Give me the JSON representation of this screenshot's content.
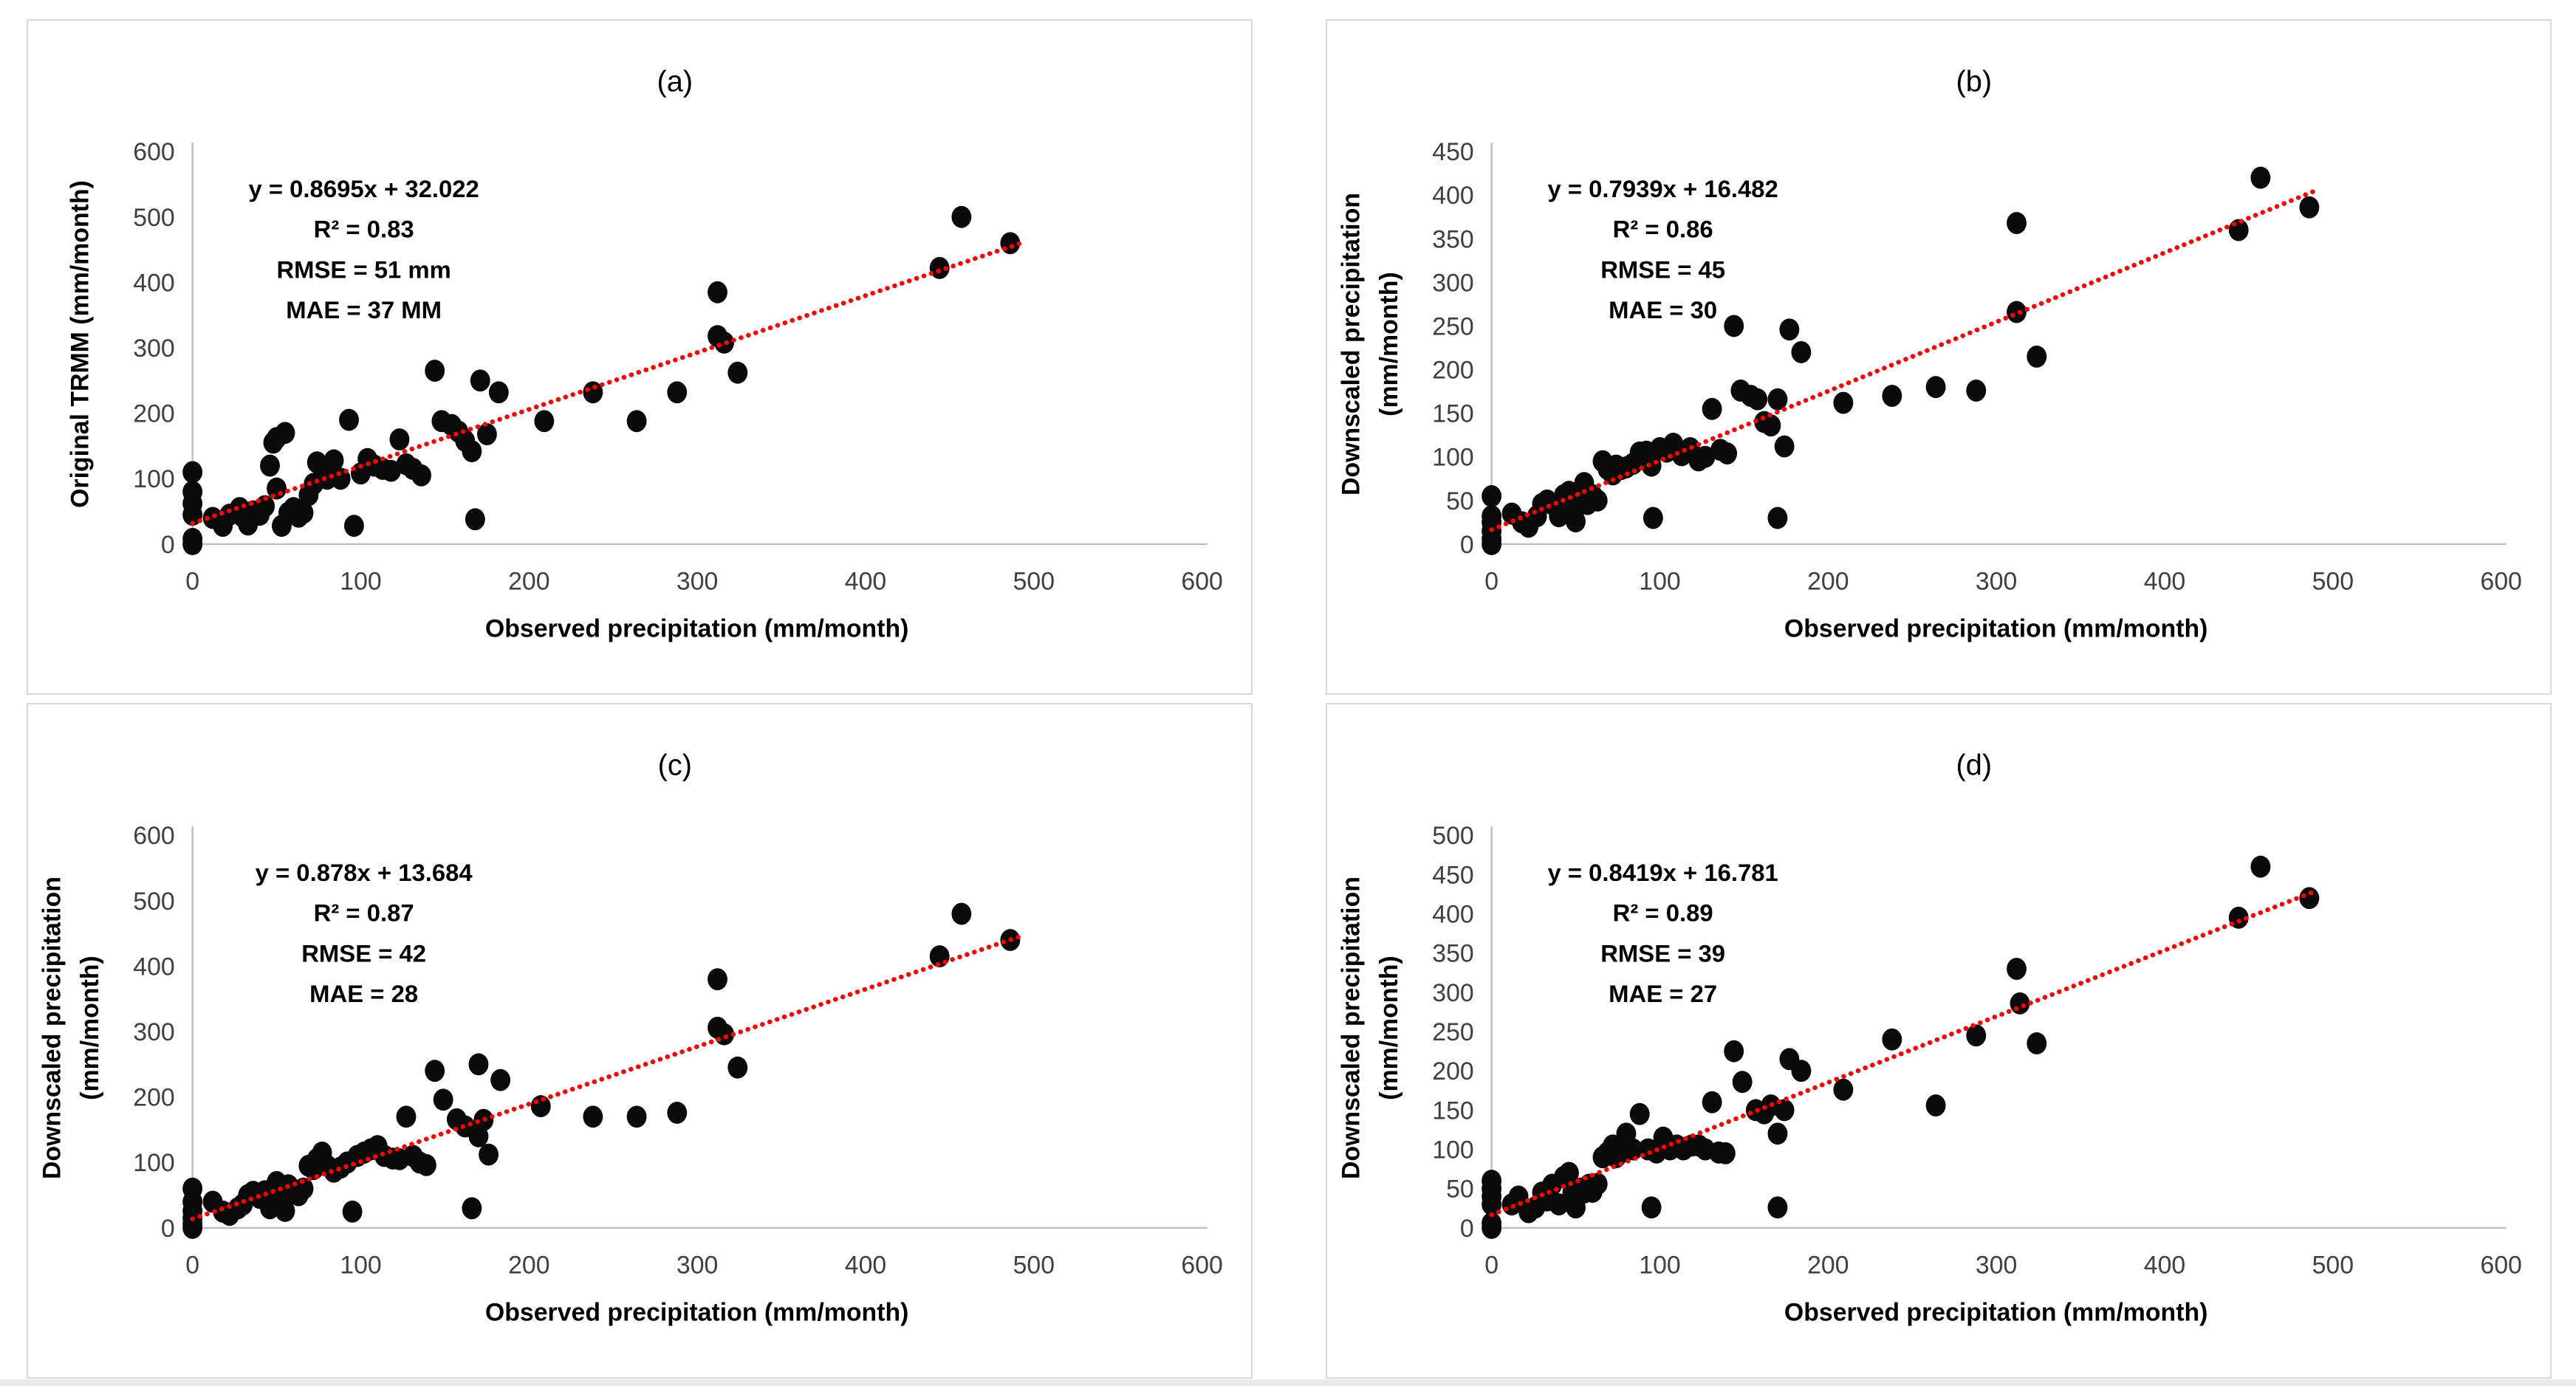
{
  "figure": {
    "background": "#ffffff",
    "panel_border_color": "#d9d9d9",
    "axis_line_color": "#bfbfbf",
    "tick_label_color": "#404040",
    "text_color": "#000000",
    "point_color": "#0a0a0a",
    "trendline_color": "#ff0000"
  },
  "chart_data": [
    {
      "type": "scatter",
      "panel_label": "(a)",
      "xlabel": "Observed precipitation (mm/month)",
      "ylabel_lines": [
        "Original TRMM (mm/month)"
      ],
      "xlim": [
        0,
        600
      ],
      "ylim": [
        0,
        600
      ],
      "xticks": [
        0,
        100,
        200,
        300,
        400,
        500,
        600
      ],
      "yticks": [
        0,
        100,
        200,
        300,
        400,
        500,
        600
      ],
      "grid": false,
      "legend": null,
      "annotation_lines": [
        "y = 0.8695x + 32.022",
        "R² = 0.83",
        "RMSE = 51 mm",
        "MAE = 37 MM"
      ],
      "trendline": {
        "slope": 0.8695,
        "intercept": 32.022,
        "x_start": 0,
        "x_end": 492,
        "style": "dotted"
      },
      "points": [
        [
          0,
          0
        ],
        [
          0,
          8
        ],
        [
          0,
          45
        ],
        [
          0,
          62
        ],
        [
          0,
          80
        ],
        [
          0,
          110
        ],
        [
          12,
          40
        ],
        [
          18,
          28
        ],
        [
          22,
          45
        ],
        [
          28,
          55
        ],
        [
          30,
          42
        ],
        [
          33,
          30
        ],
        [
          36,
          50
        ],
        [
          40,
          45
        ],
        [
          43,
          58
        ],
        [
          46,
          120
        ],
        [
          48,
          155
        ],
        [
          50,
          162
        ],
        [
          50,
          85
        ],
        [
          53,
          28
        ],
        [
          55,
          170
        ],
        [
          57,
          48
        ],
        [
          60,
          55
        ],
        [
          63,
          42
        ],
        [
          66,
          48
        ],
        [
          69,
          75
        ],
        [
          72,
          92
        ],
        [
          74,
          125
        ],
        [
          77,
          118
        ],
        [
          80,
          100
        ],
        [
          84,
          128
        ],
        [
          88,
          100
        ],
        [
          93,
          190
        ],
        [
          96,
          28
        ],
        [
          100,
          108
        ],
        [
          104,
          130
        ],
        [
          108,
          120
        ],
        [
          113,
          115
        ],
        [
          118,
          112
        ],
        [
          123,
          160
        ],
        [
          127,
          122
        ],
        [
          131,
          115
        ],
        [
          136,
          105
        ],
        [
          144,
          265
        ],
        [
          148,
          188
        ],
        [
          154,
          182
        ],
        [
          158,
          172
        ],
        [
          162,
          158
        ],
        [
          166,
          142
        ],
        [
          168,
          38
        ],
        [
          171,
          250
        ],
        [
          175,
          168
        ],
        [
          182,
          232
        ],
        [
          209,
          188
        ],
        [
          238,
          232
        ],
        [
          264,
          188
        ],
        [
          288,
          232
        ],
        [
          312,
          385
        ],
        [
          312,
          318
        ],
        [
          316,
          308
        ],
        [
          324,
          262
        ],
        [
          444,
          422
        ],
        [
          457,
          500
        ],
        [
          486,
          460
        ]
      ]
    },
    {
      "type": "scatter",
      "panel_label": "(b)",
      "xlabel": "Observed precipitation (mm/month)",
      "ylabel_lines": [
        "Downscaled precipitation",
        "(mm/month)"
      ],
      "xlim": [
        0,
        600
      ],
      "ylim": [
        0,
        450
      ],
      "xticks": [
        0,
        100,
        200,
        300,
        400,
        500,
        600
      ],
      "yticks": [
        0,
        50,
        100,
        150,
        200,
        250,
        300,
        350,
        400,
        450
      ],
      "grid": false,
      "legend": null,
      "annotation_lines": [
        "y = 0.7939x + 16.482",
        "R² = 0.86",
        "RMSE = 45",
        "MAE = 30"
      ],
      "trendline": {
        "slope": 0.7939,
        "intercept": 16.482,
        "x_start": 0,
        "x_end": 490,
        "style": "dotted"
      },
      "points": [
        [
          0,
          0
        ],
        [
          0,
          6
        ],
        [
          0,
          15
        ],
        [
          0,
          25
        ],
        [
          0,
          32
        ],
        [
          0,
          55
        ],
        [
          12,
          35
        ],
        [
          18,
          25
        ],
        [
          22,
          20
        ],
        [
          27,
          32
        ],
        [
          30,
          46
        ],
        [
          33,
          50
        ],
        [
          36,
          46
        ],
        [
          40,
          32
        ],
        [
          43,
          56
        ],
        [
          46,
          60
        ],
        [
          48,
          42
        ],
        [
          50,
          26
        ],
        [
          53,
          46
        ],
        [
          55,
          70
        ],
        [
          57,
          46
        ],
        [
          60,
          56
        ],
        [
          63,
          50
        ],
        [
          66,
          95
        ],
        [
          69,
          86
        ],
        [
          72,
          80
        ],
        [
          74,
          90
        ],
        [
          77,
          86
        ],
        [
          80,
          88
        ],
        [
          84,
          92
        ],
        [
          88,
          105
        ],
        [
          92,
          106
        ],
        [
          95,
          90
        ],
        [
          96,
          30
        ],
        [
          100,
          110
        ],
        [
          104,
          106
        ],
        [
          108,
          115
        ],
        [
          113,
          102
        ],
        [
          118,
          110
        ],
        [
          123,
          96
        ],
        [
          127,
          100
        ],
        [
          131,
          155
        ],
        [
          136,
          108
        ],
        [
          140,
          104
        ],
        [
          144,
          250
        ],
        [
          148,
          176
        ],
        [
          154,
          170
        ],
        [
          158,
          166
        ],
        [
          162,
          140
        ],
        [
          166,
          136
        ],
        [
          170,
          166
        ],
        [
          170,
          30
        ],
        [
          174,
          112
        ],
        [
          177,
          246
        ],
        [
          184,
          220
        ],
        [
          209,
          162
        ],
        [
          238,
          170
        ],
        [
          264,
          180
        ],
        [
          288,
          176
        ],
        [
          312,
          266
        ],
        [
          312,
          368
        ],
        [
          324,
          215
        ],
        [
          444,
          360
        ],
        [
          457,
          420
        ],
        [
          486,
          386
        ]
      ]
    },
    {
      "type": "scatter",
      "panel_label": "(c)",
      "xlabel": "Observed precipitation (mm/month)",
      "ylabel_lines": [
        "Downscaled precipitation",
        "(mm/month)"
      ],
      "xlim": [
        0,
        600
      ],
      "ylim": [
        0,
        600
      ],
      "xticks": [
        0,
        100,
        200,
        300,
        400,
        500,
        600
      ],
      "yticks": [
        0,
        100,
        200,
        300,
        400,
        500,
        600
      ],
      "grid": false,
      "legend": null,
      "annotation_lines": [
        "y = 0.878x + 13.684",
        "R² = 0.87",
        "RMSE = 42",
        "MAE = 28"
      ],
      "trendline": {
        "slope": 0.878,
        "intercept": 13.684,
        "x_start": 0,
        "x_end": 492,
        "style": "dotted"
      },
      "points": [
        [
          0,
          0
        ],
        [
          0,
          6
        ],
        [
          0,
          15
        ],
        [
          0,
          26
        ],
        [
          0,
          40
        ],
        [
          0,
          60
        ],
        [
          12,
          40
        ],
        [
          18,
          25
        ],
        [
          22,
          20
        ],
        [
          27,
          30
        ],
        [
          30,
          36
        ],
        [
          33,
          50
        ],
        [
          36,
          55
        ],
        [
          40,
          46
        ],
        [
          43,
          56
        ],
        [
          46,
          30
        ],
        [
          48,
          60
        ],
        [
          50,
          50
        ],
        [
          50,
          70
        ],
        [
          53,
          40
        ],
        [
          55,
          26
        ],
        [
          57,
          65
        ],
        [
          60,
          55
        ],
        [
          63,
          50
        ],
        [
          66,
          60
        ],
        [
          69,
          95
        ],
        [
          72,
          90
        ],
        [
          74,
          105
        ],
        [
          77,
          115
        ],
        [
          80,
          95
        ],
        [
          84,
          86
        ],
        [
          88,
          92
        ],
        [
          92,
          100
        ],
        [
          95,
          25
        ],
        [
          98,
          110
        ],
        [
          102,
          115
        ],
        [
          106,
          120
        ],
        [
          110,
          125
        ],
        [
          114,
          110
        ],
        [
          119,
          106
        ],
        [
          123,
          105
        ],
        [
          127,
          170
        ],
        [
          131,
          110
        ],
        [
          135,
          100
        ],
        [
          139,
          96
        ],
        [
          144,
          240
        ],
        [
          149,
          196
        ],
        [
          157,
          166
        ],
        [
          162,
          155
        ],
        [
          166,
          30
        ],
        [
          170,
          250
        ],
        [
          170,
          140
        ],
        [
          173,
          165
        ],
        [
          176,
          112
        ],
        [
          183,
          226
        ],
        [
          207,
          186
        ],
        [
          238,
          170
        ],
        [
          264,
          170
        ],
        [
          288,
          176
        ],
        [
          312,
          380
        ],
        [
          312,
          306
        ],
        [
          316,
          296
        ],
        [
          324,
          245
        ],
        [
          444,
          415
        ],
        [
          457,
          480
        ],
        [
          486,
          440
        ]
      ]
    },
    {
      "type": "scatter",
      "panel_label": "(d)",
      "xlabel": "Observed precipitation (mm/month)",
      "ylabel_lines": [
        "Downscaled precipitation",
        "(mm/month)"
      ],
      "xlim": [
        0,
        600
      ],
      "ylim": [
        0,
        500
      ],
      "xticks": [
        0,
        100,
        200,
        300,
        400,
        500,
        600
      ],
      "yticks": [
        0,
        50,
        100,
        150,
        200,
        250,
        300,
        350,
        400,
        450,
        500
      ],
      "grid": false,
      "legend": null,
      "annotation_lines": [
        "y = 0.8419x + 16.781",
        "R² = 0.89",
        "RMSE = 39",
        "MAE = 27"
      ],
      "trendline": {
        "slope": 0.8419,
        "intercept": 16.781,
        "x_start": 0,
        "x_end": 490,
        "style": "dotted"
      },
      "points": [
        [
          0,
          0
        ],
        [
          0,
          6
        ],
        [
          0,
          30
        ],
        [
          0,
          40
        ],
        [
          0,
          50
        ],
        [
          0,
          60
        ],
        [
          12,
          30
        ],
        [
          16,
          40
        ],
        [
          22,
          20
        ],
        [
          26,
          26
        ],
        [
          30,
          45
        ],
        [
          33,
          35
        ],
        [
          36,
          55
        ],
        [
          40,
          30
        ],
        [
          43,
          65
        ],
        [
          46,
          70
        ],
        [
          48,
          45
        ],
        [
          50,
          26
        ],
        [
          53,
          50
        ],
        [
          55,
          45
        ],
        [
          58,
          55
        ],
        [
          60,
          46
        ],
        [
          63,
          56
        ],
        [
          66,
          90
        ],
        [
          69,
          96
        ],
        [
          72,
          105
        ],
        [
          74,
          90
        ],
        [
          77,
          96
        ],
        [
          80,
          120
        ],
        [
          84,
          100
        ],
        [
          88,
          145
        ],
        [
          93,
          100
        ],
        [
          95,
          26
        ],
        [
          98,
          96
        ],
        [
          102,
          115
        ],
        [
          106,
          100
        ],
        [
          110,
          105
        ],
        [
          114,
          100
        ],
        [
          119,
          105
        ],
        [
          123,
          105
        ],
        [
          127,
          100
        ],
        [
          131,
          160
        ],
        [
          135,
          96
        ],
        [
          139,
          95
        ],
        [
          144,
          225
        ],
        [
          149,
          186
        ],
        [
          157,
          150
        ],
        [
          162,
          146
        ],
        [
          166,
          156
        ],
        [
          170,
          26
        ],
        [
          170,
          120
        ],
        [
          174,
          150
        ],
        [
          177,
          215
        ],
        [
          184,
          200
        ],
        [
          209,
          176
        ],
        [
          238,
          240
        ],
        [
          264,
          156
        ],
        [
          288,
          245
        ],
        [
          312,
          330
        ],
        [
          314,
          286
        ],
        [
          324,
          235
        ],
        [
          444,
          395
        ],
        [
          457,
          460
        ],
        [
          486,
          420
        ]
      ]
    }
  ]
}
